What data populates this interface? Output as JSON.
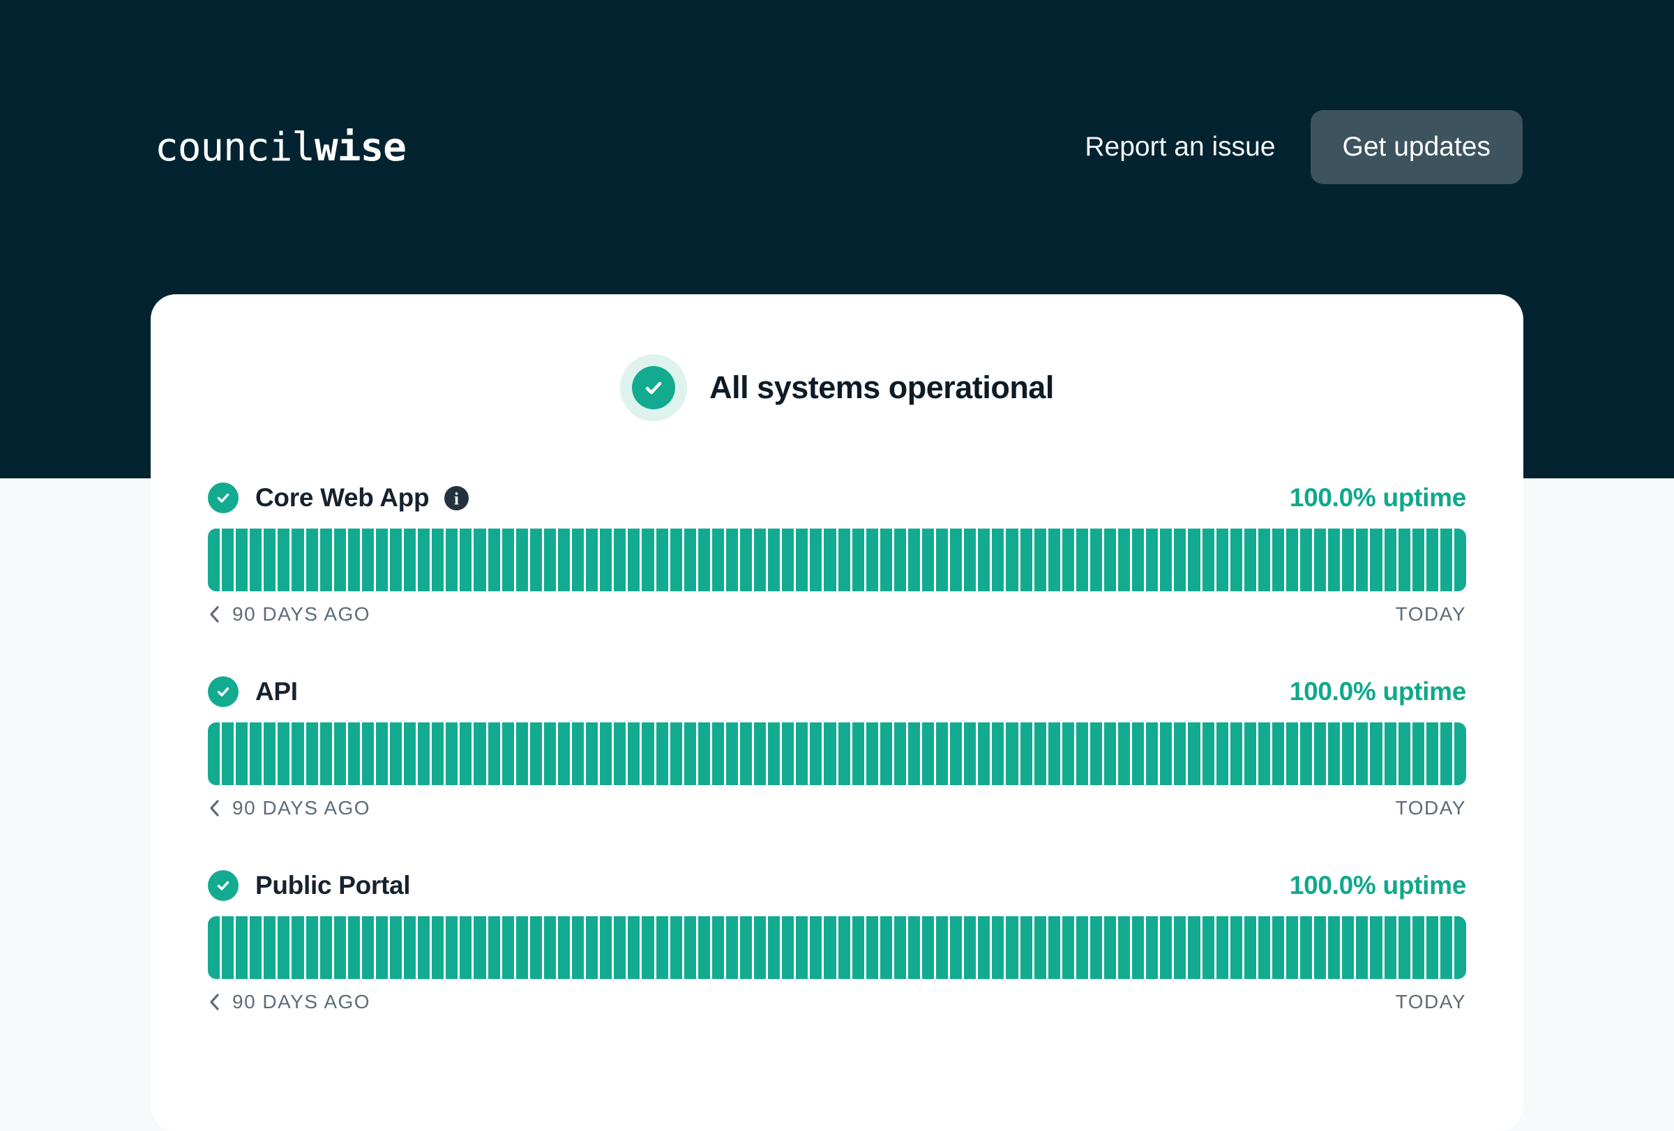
{
  "brand": {
    "logo_regular": "council",
    "logo_bold": "wise"
  },
  "header": {
    "report_issue_label": "Report an issue",
    "get_updates_label": "Get updates"
  },
  "status_banner": {
    "heading": "All systems operational",
    "status": "operational"
  },
  "uptime_bar": {
    "days": 90,
    "start_label": "90 DAYS AGO",
    "end_label": "TODAY"
  },
  "services": [
    {
      "name": "Core Web App",
      "uptime": "100.0% uptime",
      "has_info_icon": true,
      "status": "operational"
    },
    {
      "name": "API",
      "uptime": "100.0% uptime",
      "has_info_icon": false,
      "status": "operational"
    },
    {
      "name": "Public Portal",
      "uptime": "100.0% uptime",
      "has_info_icon": false,
      "status": "operational"
    }
  ],
  "theme": {
    "navy": "#042330",
    "page_bg": "#f7f9fa",
    "card_bg": "#ffffff",
    "green": "#13ab90",
    "green_text": "#0fa88b",
    "mint": "#dff3ee",
    "footer_gray": "#5d6b7a",
    "button_bg": "#3d545e",
    "heading_color": "#0d1b26",
    "name_color": "#16222e",
    "info_bg": "#243240"
  }
}
